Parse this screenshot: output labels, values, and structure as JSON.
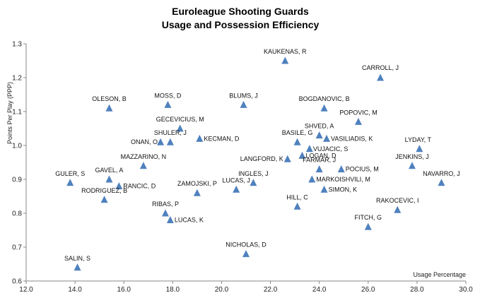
{
  "chart_data": {
    "type": "scatter",
    "title": [
      "Euroleague Shooting Guards",
      "Usage and Possession Efficiency"
    ],
    "xlabel": "Usage Percentage",
    "ylabel": "Points Per Play (PPP)",
    "xlim": [
      12.0,
      30.0
    ],
    "ylim": [
      0.6,
      1.3
    ],
    "xticks": [
      "12.0",
      "14.0",
      "16.0",
      "18.0",
      "20.0",
      "22.0",
      "24.0",
      "26.0",
      "28.0",
      "30.0"
    ],
    "yticks": [
      "0.6",
      "0.7",
      "0.8",
      "0.9",
      "1.0",
      "1.1",
      "1.2",
      "1.3"
    ],
    "grid": false,
    "marker_color": "#4F81BD",
    "points": [
      {
        "label": "KAUKENAS, R",
        "x": 22.6,
        "y": 1.25
      },
      {
        "label": "CARROLL, J",
        "x": 26.5,
        "y": 1.2
      },
      {
        "label": "OLESON, B",
        "x": 15.4,
        "y": 1.11
      },
      {
        "label": "MOSS, D",
        "x": 17.8,
        "y": 1.12
      },
      {
        "label": "BLUMS, J",
        "x": 20.9,
        "y": 1.12
      },
      {
        "label": "BOGDANOVIC, B",
        "x": 24.2,
        "y": 1.11
      },
      {
        "label": "POPOVIC, M",
        "x": 25.6,
        "y": 1.07
      },
      {
        "label": "GECEVICIUS, M",
        "x": 18.3,
        "y": 1.05
      },
      {
        "label": "SHVED, A",
        "x": 24.0,
        "y": 1.03
      },
      {
        "label": "BASILE, G",
        "x": 23.1,
        "y": 1.01
      },
      {
        "label": "VASILIADIS, K",
        "x": 24.3,
        "y": 1.02
      },
      {
        "label": "SHULER, J",
        "x": 17.9,
        "y": 1.01
      },
      {
        "label": "ONAN, O",
        "x": 17.5,
        "y": 1.01
      },
      {
        "label": "KECMAN, D",
        "x": 19.1,
        "y": 1.02
      },
      {
        "label": "VUJACIC, S",
        "x": 23.6,
        "y": 0.99
      },
      {
        "label": "LYDAY, T",
        "x": 28.1,
        "y": 0.99
      },
      {
        "label": "LOGAN, D",
        "x": 23.3,
        "y": 0.97
      },
      {
        "label": "LANGFORD, K",
        "x": 22.7,
        "y": 0.96
      },
      {
        "label": "JENKINS, J",
        "x": 27.8,
        "y": 0.94
      },
      {
        "label": "MAZZARINO, N",
        "x": 16.8,
        "y": 0.94
      },
      {
        "label": "FARMAR, J",
        "x": 24.0,
        "y": 0.93
      },
      {
        "label": "POCIUS, M",
        "x": 24.9,
        "y": 0.93
      },
      {
        "label": "GAVEL, A",
        "x": 15.4,
        "y": 0.9
      },
      {
        "label": "GULER, S",
        "x": 13.8,
        "y": 0.89
      },
      {
        "label": "INGLES, J",
        "x": 21.3,
        "y": 0.89
      },
      {
        "label": "MARKOISHVILI, M",
        "x": 23.7,
        "y": 0.9
      },
      {
        "label": "NAVARRO, J",
        "x": 29.0,
        "y": 0.89
      },
      {
        "label": "RANCIC, D",
        "x": 15.8,
        "y": 0.88
      },
      {
        "label": "LUCAS, J",
        "x": 20.6,
        "y": 0.87
      },
      {
        "label": "SIMON, K",
        "x": 24.2,
        "y": 0.87
      },
      {
        "label": "ZAMOJSKI, P",
        "x": 19.0,
        "y": 0.86
      },
      {
        "label": "RODRIGUEZ, B",
        "x": 15.2,
        "y": 0.84
      },
      {
        "label": "HILL, C",
        "x": 23.1,
        "y": 0.82
      },
      {
        "label": "RAKOCEVIC, I",
        "x": 27.2,
        "y": 0.81
      },
      {
        "label": "RIBAS, P",
        "x": 17.7,
        "y": 0.8
      },
      {
        "label": "LUCAS, K",
        "x": 17.9,
        "y": 0.78
      },
      {
        "label": "FITCH, G",
        "x": 26.0,
        "y": 0.76
      },
      {
        "label": "NICHOLAS, D",
        "x": 21.0,
        "y": 0.68
      },
      {
        "label": "SALIN, S",
        "x": 14.1,
        "y": 0.64
      }
    ]
  }
}
